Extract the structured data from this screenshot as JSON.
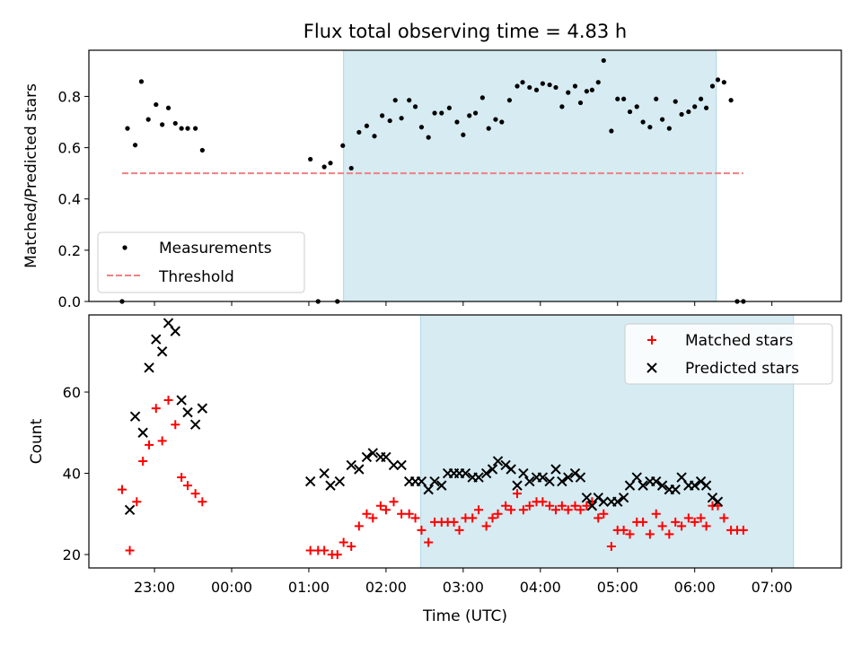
{
  "chart_data": [
    {
      "type": "scatter",
      "title": "Flux total observing time = 4.83 h",
      "xlabel": "",
      "ylabel": "Matched/Predicted stars",
      "xlim": [
        -0.85,
        8.9
      ],
      "ylim": [
        0.0,
        0.98
      ],
      "yticks": [
        0.0,
        0.2,
        0.4,
        0.6,
        0.8
      ],
      "ytick_labels": [
        "0.0",
        "0.2",
        "0.4",
        "0.6",
        "0.8"
      ],
      "x_unit_note": "hours relative to 00:00 UTC",
      "highlight_span": [
        2.45,
        7.28
      ],
      "grid": false,
      "legend_position": "lower-left",
      "series": [
        {
          "name": "Measurements",
          "marker": "dot",
          "color": "#000000",
          "points": [
            [
              -0.42,
              0.0
            ],
            [
              -0.35,
              0.675
            ],
            [
              -0.25,
              0.61
            ],
            [
              -0.17,
              0.858
            ],
            [
              -0.08,
              0.71
            ],
            [
              0.02,
              0.768
            ],
            [
              0.1,
              0.69
            ],
            [
              0.18,
              0.755
            ],
            [
              0.27,
              0.695
            ],
            [
              0.35,
              0.675
            ],
            [
              0.43,
              0.675
            ],
            [
              0.53,
              0.675
            ],
            [
              0.62,
              0.59
            ],
            [
              2.02,
              0.555
            ],
            [
              2.12,
              0.0
            ],
            [
              2.2,
              0.525
            ],
            [
              2.28,
              0.54
            ],
            [
              2.37,
              0.0
            ],
            [
              2.44,
              0.608
            ],
            [
              2.55,
              0.52
            ],
            [
              2.65,
              0.66
            ],
            [
              2.75,
              0.685
            ],
            [
              2.85,
              0.645
            ],
            [
              2.95,
              0.725
            ],
            [
              3.05,
              0.705
            ],
            [
              3.12,
              0.785
            ],
            [
              3.2,
              0.715
            ],
            [
              3.3,
              0.785
            ],
            [
              3.38,
              0.76
            ],
            [
              3.46,
              0.68
            ],
            [
              3.55,
              0.64
            ],
            [
              3.63,
              0.735
            ],
            [
              3.72,
              0.735
            ],
            [
              3.82,
              0.755
            ],
            [
              3.92,
              0.7
            ],
            [
              4.0,
              0.65
            ],
            [
              4.08,
              0.725
            ],
            [
              4.16,
              0.735
            ],
            [
              4.25,
              0.795
            ],
            [
              4.33,
              0.675
            ],
            [
              4.42,
              0.71
            ],
            [
              4.5,
              0.7
            ],
            [
              4.6,
              0.785
            ],
            [
              4.7,
              0.84
            ],
            [
              4.77,
              0.855
            ],
            [
              4.86,
              0.835
            ],
            [
              4.95,
              0.825
            ],
            [
              5.03,
              0.85
            ],
            [
              5.12,
              0.845
            ],
            [
              5.2,
              0.835
            ],
            [
              5.28,
              0.76
            ],
            [
              5.36,
              0.815
            ],
            [
              5.45,
              0.84
            ],
            [
              5.52,
              0.775
            ],
            [
              5.6,
              0.82
            ],
            [
              5.67,
              0.825
            ],
            [
              5.75,
              0.855
            ],
            [
              5.82,
              0.94
            ],
            [
              5.92,
              0.665
            ],
            [
              6.0,
              0.79
            ],
            [
              6.08,
              0.79
            ],
            [
              6.16,
              0.74
            ],
            [
              6.25,
              0.76
            ],
            [
              6.33,
              0.7
            ],
            [
              6.42,
              0.68
            ],
            [
              6.5,
              0.79
            ],
            [
              6.58,
              0.71
            ],
            [
              6.67,
              0.675
            ],
            [
              6.75,
              0.78
            ],
            [
              6.83,
              0.73
            ],
            [
              6.92,
              0.74
            ],
            [
              7.0,
              0.76
            ],
            [
              7.08,
              0.79
            ],
            [
              7.15,
              0.755
            ],
            [
              7.23,
              0.84
            ],
            [
              7.3,
              0.865
            ],
            [
              7.38,
              0.855
            ],
            [
              7.47,
              0.785
            ],
            [
              7.55,
              0.0
            ],
            [
              7.63,
              0.0
            ]
          ]
        },
        {
          "name": "Threshold",
          "style": "dashed",
          "color": "#f08080",
          "x": [
            -0.42,
            7.63
          ],
          "y": [
            0.5,
            0.5
          ]
        }
      ]
    },
    {
      "type": "scatter",
      "title": "",
      "xlabel": "Time (UTC)",
      "ylabel": "Count",
      "xlim": [
        -0.85,
        8.9
      ],
      "ylim": [
        16.7,
        79
      ],
      "yticks": [
        20,
        40,
        60
      ],
      "ytick_labels": [
        "20",
        "40",
        "60"
      ],
      "xticks": [
        0,
        1,
        2,
        3,
        4,
        5,
        6,
        7,
        8
      ],
      "xtick_labels": [
        "23:00",
        "00:00",
        "01:00",
        "02:00",
        "03:00",
        "04:00",
        "05:00",
        "06:00",
        "07:00"
      ],
      "x_unit_note": "hours relative to 23:00 UTC",
      "highlight_span": [
        3.45,
        8.28
      ],
      "grid": false,
      "legend_position": "upper-right",
      "series": [
        {
          "name": "Matched stars",
          "marker": "plus",
          "color": "#ff0000",
          "points": [
            [
              -0.42,
              36
            ],
            [
              -0.32,
              21
            ],
            [
              -0.23,
              33
            ],
            [
              -0.15,
              43
            ],
            [
              -0.07,
              47
            ],
            [
              0.02,
              56
            ],
            [
              0.1,
              48
            ],
            [
              0.18,
              58
            ],
            [
              0.27,
              52
            ],
            [
              0.35,
              39
            ],
            [
              0.43,
              37
            ],
            [
              0.53,
              35
            ],
            [
              0.62,
              33
            ],
            [
              2.02,
              21
            ],
            [
              2.12,
              21
            ],
            [
              2.2,
              21
            ],
            [
              2.3,
              20
            ],
            [
              2.37,
              20
            ],
            [
              2.45,
              23
            ],
            [
              2.55,
              22
            ],
            [
              2.65,
              27
            ],
            [
              2.75,
              30
            ],
            [
              2.83,
              29
            ],
            [
              2.93,
              32
            ],
            [
              3.0,
              31
            ],
            [
              3.1,
              33
            ],
            [
              3.2,
              30
            ],
            [
              3.3,
              30
            ],
            [
              3.38,
              29
            ],
            [
              3.46,
              26
            ],
            [
              3.55,
              23
            ],
            [
              3.63,
              28
            ],
            [
              3.72,
              28
            ],
            [
              3.8,
              28
            ],
            [
              3.88,
              28
            ],
            [
              3.95,
              26
            ],
            [
              4.03,
              29
            ],
            [
              4.12,
              29
            ],
            [
              4.2,
              31
            ],
            [
              4.3,
              27
            ],
            [
              4.38,
              29
            ],
            [
              4.45,
              30
            ],
            [
              4.55,
              32
            ],
            [
              4.62,
              31
            ],
            [
              4.7,
              35
            ],
            [
              4.78,
              31
            ],
            [
              4.86,
              32
            ],
            [
              4.95,
              33
            ],
            [
              5.03,
              33
            ],
            [
              5.12,
              32
            ],
            [
              5.2,
              31
            ],
            [
              5.28,
              32
            ],
            [
              5.36,
              31
            ],
            [
              5.45,
              32
            ],
            [
              5.52,
              31
            ],
            [
              5.6,
              32
            ],
            [
              5.67,
              33
            ],
            [
              5.75,
              29
            ],
            [
              5.82,
              30
            ],
            [
              5.92,
              22
            ],
            [
              6.0,
              26
            ],
            [
              6.08,
              26
            ],
            [
              6.16,
              25
            ],
            [
              6.25,
              28
            ],
            [
              6.33,
              28
            ],
            [
              6.42,
              25
            ],
            [
              6.5,
              30
            ],
            [
              6.58,
              27
            ],
            [
              6.67,
              25
            ],
            [
              6.75,
              28
            ],
            [
              6.83,
              27
            ],
            [
              6.92,
              29
            ],
            [
              7.0,
              28
            ],
            [
              7.08,
              29
            ],
            [
              7.15,
              27
            ],
            [
              7.23,
              32
            ],
            [
              7.3,
              32
            ],
            [
              7.38,
              29
            ],
            [
              7.47,
              26
            ],
            [
              7.55,
              26
            ],
            [
              7.63,
              26
            ]
          ]
        },
        {
          "name": "Predicted stars",
          "marker": "x",
          "color": "#000000",
          "points": [
            [
              -0.32,
              31
            ],
            [
              -0.25,
              54
            ],
            [
              -0.15,
              50
            ],
            [
              -0.07,
              66
            ],
            [
              0.02,
              73
            ],
            [
              0.1,
              70
            ],
            [
              0.18,
              77
            ],
            [
              0.27,
              75
            ],
            [
              0.35,
              58
            ],
            [
              0.43,
              55
            ],
            [
              0.53,
              52
            ],
            [
              0.62,
              56
            ],
            [
              2.02,
              38
            ],
            [
              2.2,
              40
            ],
            [
              2.28,
              37
            ],
            [
              2.4,
              38
            ],
            [
              2.55,
              42
            ],
            [
              2.65,
              41
            ],
            [
              2.75,
              44
            ],
            [
              2.83,
              45
            ],
            [
              2.93,
              44
            ],
            [
              3.0,
              44
            ],
            [
              3.1,
              42
            ],
            [
              3.2,
              42
            ],
            [
              3.3,
              38
            ],
            [
              3.38,
              38
            ],
            [
              3.46,
              38
            ],
            [
              3.55,
              36
            ],
            [
              3.63,
              38
            ],
            [
              3.72,
              37
            ],
            [
              3.8,
              40
            ],
            [
              3.88,
              40
            ],
            [
              3.95,
              40
            ],
            [
              4.03,
              40
            ],
            [
              4.12,
              39
            ],
            [
              4.2,
              39
            ],
            [
              4.3,
              40
            ],
            [
              4.38,
              41
            ],
            [
              4.45,
              43
            ],
            [
              4.55,
              42
            ],
            [
              4.62,
              41
            ],
            [
              4.7,
              37
            ],
            [
              4.78,
              40
            ],
            [
              4.86,
              38
            ],
            [
              4.95,
              39
            ],
            [
              5.03,
              39
            ],
            [
              5.12,
              38
            ],
            [
              5.2,
              41
            ],
            [
              5.28,
              38
            ],
            [
              5.36,
              39
            ],
            [
              5.45,
              40
            ],
            [
              5.52,
              39
            ],
            [
              5.6,
              34
            ],
            [
              5.67,
              32
            ],
            [
              5.75,
              34
            ],
            [
              5.82,
              33
            ],
            [
              5.92,
              33
            ],
            [
              6.0,
              33
            ],
            [
              6.08,
              34
            ],
            [
              6.16,
              37
            ],
            [
              6.25,
              39
            ],
            [
              6.33,
              37
            ],
            [
              6.42,
              38
            ],
            [
              6.5,
              38
            ],
            [
              6.58,
              37
            ],
            [
              6.67,
              36
            ],
            [
              6.75,
              36
            ],
            [
              6.83,
              39
            ],
            [
              6.92,
              37
            ],
            [
              7.0,
              37
            ],
            [
              7.08,
              38
            ],
            [
              7.15,
              37
            ],
            [
              7.23,
              34
            ],
            [
              7.3,
              33
            ]
          ]
        }
      ]
    }
  ]
}
